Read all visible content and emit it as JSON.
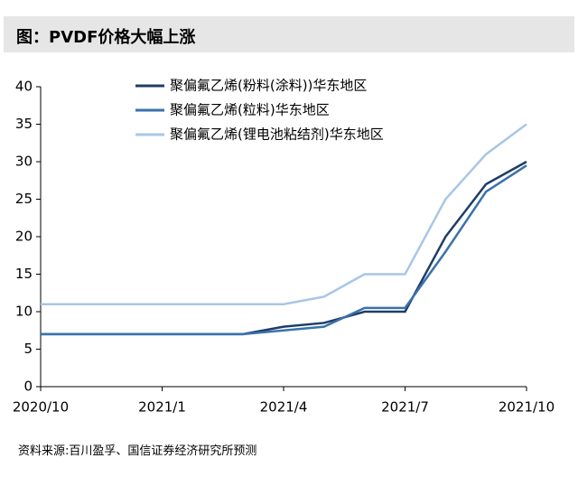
{
  "title": "图：PVDF价格大幅上涨",
  "source": "资料来源:百川盈孚、国信证券经济研究所预测",
  "chart_data": {
    "type": "line",
    "x": [
      "2020/10",
      "2020/11",
      "2020/12",
      "2021/1",
      "2021/2",
      "2021/3",
      "2021/4",
      "2021/5",
      "2021/6",
      "2021/7",
      "2021/8",
      "2021/9",
      "2021/10"
    ],
    "xticks": [
      "2020/10",
      "2021/1",
      "2021/4",
      "2021/7",
      "2021/10"
    ],
    "series": [
      {
        "name": "聚偏氟乙烯(粉料(涂料))华东地区",
        "color": "#1f3d66",
        "values": [
          7,
          7,
          7,
          7,
          7,
          7,
          8,
          8.5,
          10,
          10,
          20,
          27,
          30
        ]
      },
      {
        "name": "聚偏氟乙烯(粒料)华东地区",
        "color": "#3a72ad",
        "values": [
          7,
          7,
          7,
          7,
          7,
          7,
          7.5,
          8,
          10.5,
          10.5,
          18,
          26,
          29.5
        ]
      },
      {
        "name": "聚偏氟乙烯(锂电池粘结剂)华东地区",
        "color": "#a9c6e6",
        "values": [
          11,
          11,
          11,
          11,
          11,
          11,
          11,
          12,
          15,
          15,
          25,
          31,
          35
        ]
      }
    ],
    "ylim": [
      0,
      40
    ],
    "yticks": [
      0,
      5,
      10,
      15,
      20,
      25,
      30,
      35,
      40
    ],
    "grid": false
  }
}
